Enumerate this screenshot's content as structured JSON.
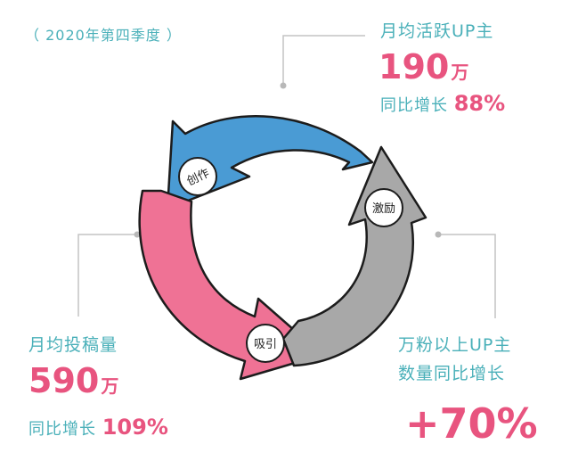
{
  "period": "（ 2020年第四季度 ）",
  "top_right": {
    "label": "月均活跃UP主",
    "value": "190",
    "unit": "万",
    "growth_label": "同比增长",
    "growth_value": "88%"
  },
  "bottom_left": {
    "label": "月均投稿量",
    "value": "590",
    "unit": "万",
    "growth_label": "同比增长",
    "growth_value": "109%"
  },
  "bottom_right": {
    "label_line1": "万粉以上UP主",
    "label_line2": "数量同比增长",
    "value": "+70%"
  },
  "cycle": {
    "create": "创作",
    "inspire": "激励",
    "attract": "吸引"
  },
  "colors": {
    "blue_arrow": "#4a9bd4",
    "pink_arrow": "#ef7295",
    "gray_arrow": "#a8a8a8",
    "teal_text": "#4ab0b9",
    "pink_text": "#e8547f"
  }
}
